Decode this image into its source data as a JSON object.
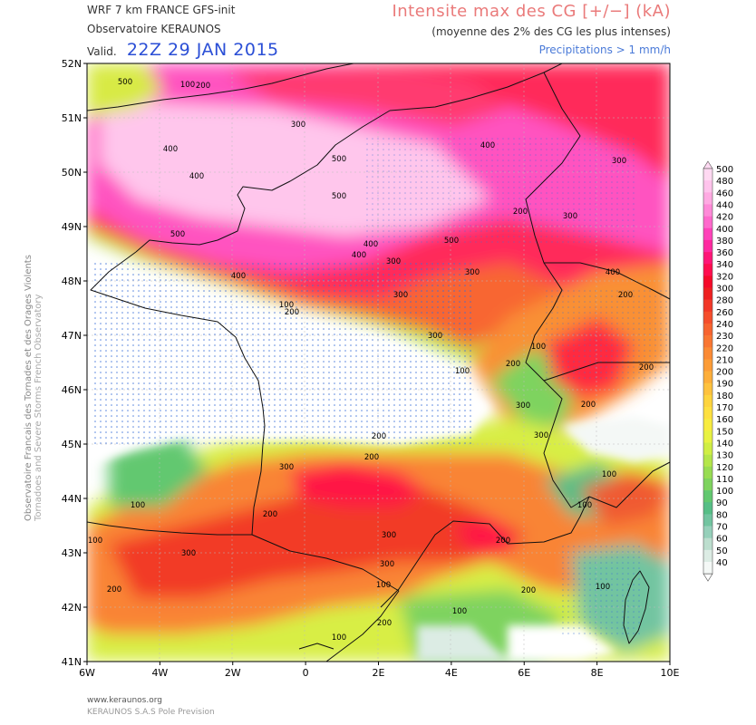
{
  "header": {
    "model": "WRF 7 km FRANCE  GFS-init",
    "observatory": "Observatoire KERAUNOS",
    "valid_label": "Valid.",
    "valid_time": "22Z 29 JAN 2015",
    "param_title": "Intensite max des CG [+/−] (kA)",
    "param_subtitle": "(moyenne des 2% des CG les plus intenses)",
    "precip_note": "Precipitations > 1 mm/h"
  },
  "side_text": {
    "line1": "Observatoire Francais des Tornades et des Orages Violents",
    "line2": "Tornadoes and Severe Storms French Observatory"
  },
  "footer": {
    "website": "www.keraunos.org",
    "company": "KERAUNOS S.A.S Pole Prevision"
  },
  "map": {
    "lat_labels": [
      "52N",
      "51N",
      "50N",
      "49N",
      "48N",
      "47N",
      "46N",
      "45N",
      "44N",
      "43N",
      "42N",
      "41N"
    ],
    "lon_labels": [
      "6W",
      "4W",
      "2W",
      "0",
      "2E",
      "4E",
      "6E",
      "8E",
      "10E"
    ],
    "contour_labels": [
      "500",
      "100",
      "200",
      "300",
      "400",
      "500",
      "400",
      "400",
      "300",
      "500",
      "200",
      "300",
      "500",
      "400",
      "400",
      "500",
      "300",
      "300",
      "400",
      "300",
      "400",
      "200",
      "100",
      "200",
      "300",
      "200",
      "100",
      "100",
      "200",
      "300",
      "300",
      "200",
      "200",
      "200",
      "300",
      "100",
      "200",
      "100",
      "100",
      "300",
      "100",
      "200",
      "300",
      "300",
      "200",
      "100",
      "200",
      "100",
      "100",
      "200",
      "100"
    ],
    "legend_values": [
      "500",
      "480",
      "460",
      "440",
      "420",
      "400",
      "380",
      "360",
      "340",
      "320",
      "300",
      "280",
      "260",
      "240",
      "230",
      "220",
      "210",
      "200",
      "190",
      "180",
      "170",
      "160",
      "150",
      "140",
      "130",
      "120",
      "110",
      "100",
      "90",
      "80",
      "70",
      "60",
      "50",
      "40"
    ],
    "legend_colors": [
      "#ffd9f2",
      "#ffc3ec",
      "#ffaae2",
      "#ff8ad8",
      "#ff69cc",
      "#ff42b9",
      "#ff2aa0",
      "#ff1677",
      "#ff0d4f",
      "#f50a2a",
      "#ee2020",
      "#f23828",
      "#f54e2c",
      "#f76430",
      "#f97632",
      "#fb8a34",
      "#fc9c36",
      "#fdae3a",
      "#fec23e",
      "#fed43e",
      "#fee040",
      "#f8ec40",
      "#e8f242",
      "#d0ee44",
      "#b4e64a",
      "#98dc52",
      "#7ed35e",
      "#62c870",
      "#56be86",
      "#72c4a0",
      "#96d0ba",
      "#bcdece",
      "#dcece4",
      "#f4f8f6"
    ]
  }
}
